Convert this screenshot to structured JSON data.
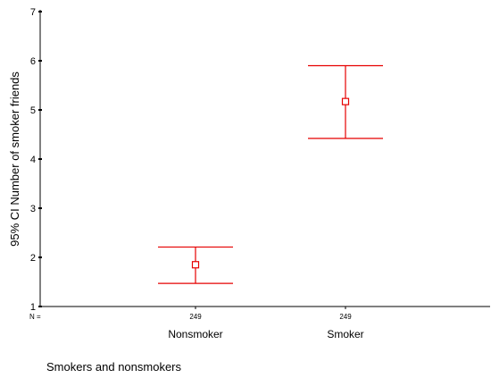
{
  "chart_data": {
    "type": "errorbar",
    "title": "",
    "xlabel": "Smokers and nonsmokers",
    "ylabel": "95% CI Number of smoker friends",
    "ylim": [
      1,
      7
    ],
    "yticks": [
      1,
      2,
      3,
      4,
      5,
      6,
      7
    ],
    "n_prefix": "N =",
    "categories": [
      "Nonsmoker",
      "Smoker"
    ],
    "series": [
      {
        "n": [
          249,
          249
        ],
        "mean": [
          1.85,
          5.17
        ],
        "lower": [
          1.47,
          4.42
        ],
        "upper": [
          2.21,
          5.9
        ]
      }
    ],
    "grid": false,
    "error_color": "#e60000"
  }
}
